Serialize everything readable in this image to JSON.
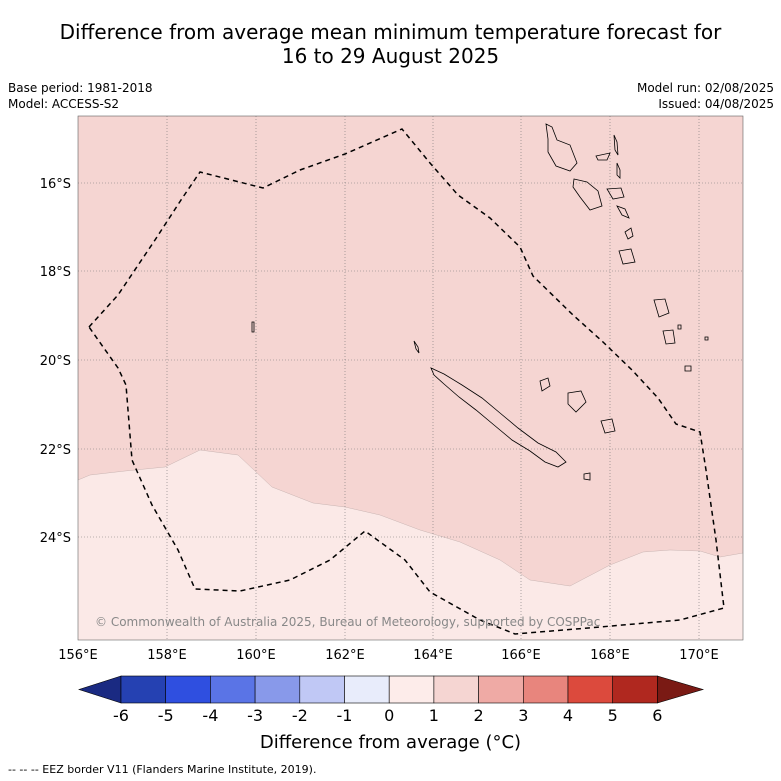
{
  "title": {
    "line1": "Difference from average mean minimum temperature forecast for",
    "line2": "16 to 29 August 2025"
  },
  "meta": {
    "base_period": "Base period: 1981-2018",
    "model": "Model: ACCESS-S2",
    "model_run": "Model run: 02/08/2025",
    "issued": "Issued: 04/08/2025"
  },
  "map": {
    "lat_ticks": [
      "16°S",
      "18°S",
      "20°S",
      "22°S",
      "24°S"
    ],
    "lon_ticks": [
      "156°E",
      "158°E",
      "160°E",
      "162°E",
      "164°E",
      "166°E",
      "168°E",
      "170°E"
    ],
    "copyright": "© Commonwealth of Australia 2025, Bureau of Meteorology, supported by COSPPac",
    "region_colors": {
      "band_0_1": "#fbe9e7",
      "band_1_2": "#f5d5d2"
    },
    "eez_label": "EEZ border"
  },
  "colorbar": {
    "ticks": [
      "-6",
      "-5",
      "-4",
      "-3",
      "-2",
      "-1",
      "0",
      "1",
      "2",
      "3",
      "4",
      "5",
      "6"
    ],
    "colors": [
      "#1a2a82",
      "#2541b2",
      "#2f4fe0",
      "#5a74e6",
      "#8899ea",
      "#c0c8f5",
      "#e8ecfb",
      "#fdecea",
      "#f5d5d2",
      "#efaaa5",
      "#e8857d",
      "#dc4a3d",
      "#b0281f",
      "#7a1a14"
    ],
    "label": "Difference from average (°C)"
  },
  "footer": "--  --  -- EEZ border V11 (Flanders Marine Institute, 2019)."
}
